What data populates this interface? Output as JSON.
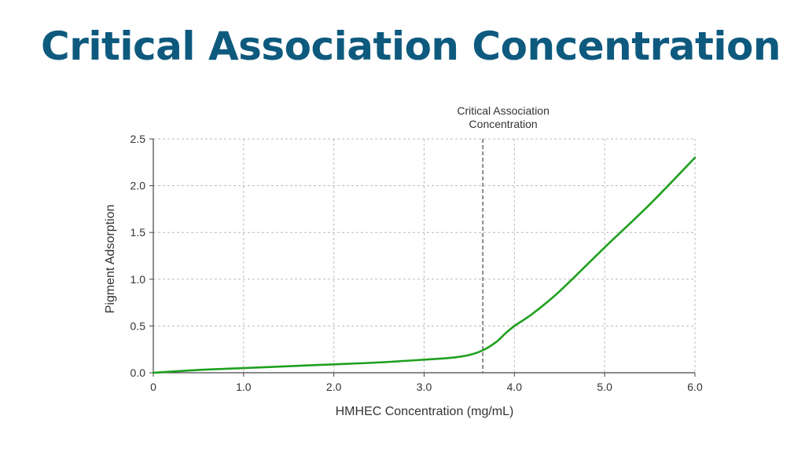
{
  "slide": {
    "title": "Critical Association Concentration"
  },
  "chart_data": {
    "type": "line",
    "title": "",
    "xlabel": "HMHEC Concentration (mg/mL)",
    "ylabel": "Pigment Adsorption",
    "xlim": [
      0,
      6.0
    ],
    "ylim": [
      0,
      2.5
    ],
    "xticks": [
      0,
      1.0,
      2.0,
      3.0,
      4.0,
      5.0,
      6.0
    ],
    "xtick_labels": [
      "0",
      "1.0",
      "2.0",
      "3.0",
      "4.0",
      "5.0",
      "6.0"
    ],
    "yticks": [
      0,
      0.5,
      1.0,
      1.5,
      2.0,
      2.5
    ],
    "ytick_labels": [
      "0.0",
      "0.5",
      "1.0",
      "1.5",
      "2.0",
      "2.5"
    ],
    "grid": true,
    "series": [
      {
        "color": "#1fa01f",
        "x": [
          0,
          0.5,
          1.0,
          1.5,
          2.0,
          2.5,
          3.0,
          3.3,
          3.5,
          3.65,
          3.8,
          3.9,
          4.0,
          4.2,
          4.5,
          5.0,
          5.5,
          6.0
        ],
        "y": [
          0,
          0.03,
          0.05,
          0.07,
          0.09,
          0.11,
          0.14,
          0.16,
          0.19,
          0.24,
          0.33,
          0.42,
          0.5,
          0.63,
          0.87,
          1.34,
          1.8,
          2.3
        ]
      }
    ],
    "annotations": [
      {
        "type": "vline",
        "x": 3.65,
        "style": "dashed",
        "color": "#555555",
        "label_lines": [
          "Critical Association",
          "Concentration"
        ]
      }
    ]
  }
}
